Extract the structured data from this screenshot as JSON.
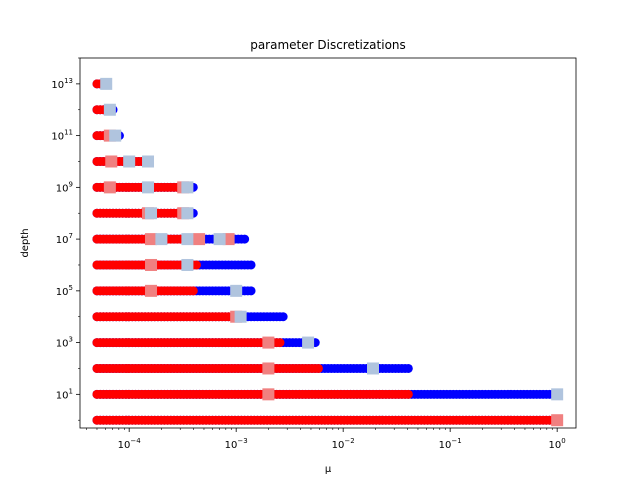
{
  "chart_data": {
    "type": "scatter",
    "title": "parameter Discretizations",
    "xlabel": "μ",
    "ylabel": "depth",
    "xscale": "log",
    "yscale": "log",
    "xlim": [
      3.47e-05,
      1.5
    ],
    "ylim": [
      0.5,
      100000000000000
    ],
    "grid": false,
    "x_ticks": [
      {
        "value": 0.0001,
        "label": "10",
        "sup": "−4"
      },
      {
        "value": 0.001,
        "label": "10",
        "sup": "−3"
      },
      {
        "value": 0.01,
        "label": "10",
        "sup": "−2"
      },
      {
        "value": 0.1,
        "label": "10",
        "sup": "−1"
      },
      {
        "value": 1,
        "label": "10",
        "sup": "0"
      }
    ],
    "y_ticks": [
      {
        "value": 10,
        "label": "10",
        "sup": "1"
      },
      {
        "value": 1000,
        "label": "10",
        "sup": "3"
      },
      {
        "value": 100000,
        "label": "10",
        "sup": "5"
      },
      {
        "value": 10000000,
        "label": "10",
        "sup": "7"
      },
      {
        "value": 1000000000,
        "label": "10",
        "sup": "9"
      },
      {
        "value": 100000000000,
        "label": "10",
        "sup": "11"
      },
      {
        "value": 10000000000000,
        "label": "10",
        "sup": "13"
      }
    ],
    "x_min": 5e-05,
    "rows": [
      {
        "depth": 1,
        "red_max": 1.0,
        "blue_max": 1.0,
        "pink": [
          1.0
        ],
        "lightblue": []
      },
      {
        "depth": 10,
        "red_max": 0.042,
        "blue_max": 1.0,
        "pink": [
          0.002
        ],
        "lightblue": [
          1.0
        ]
      },
      {
        "depth": 100,
        "red_max": 0.006,
        "blue_max": 0.042,
        "pink": [
          0.002
        ],
        "lightblue": [
          0.019
        ]
      },
      {
        "depth": 1000,
        "red_max": 0.0027,
        "blue_max": 0.0057,
        "pink": [
          0.002
        ],
        "lightblue": [
          0.0047
        ]
      },
      {
        "depth": 10000,
        "red_max": 0.0011,
        "blue_max": 0.0028,
        "pink": [
          0.001
        ],
        "lightblue": [
          0.0011
        ]
      },
      {
        "depth": 100000,
        "red_max": 0.0004,
        "blue_max": 0.0014,
        "pink": [
          0.00016
        ],
        "lightblue": [
          0.001
        ]
      },
      {
        "depth": 1000000,
        "red_max": 0.00045,
        "blue_max": 0.0014,
        "pink": [
          0.00016
        ],
        "lightblue": [
          0.00035
        ]
      },
      {
        "depth": 10000000,
        "red_max": 0.00045,
        "blue_max": 0.00125,
        "pink": [
          0.00016,
          0.00045,
          0.00085
        ],
        "lightblue": [
          0.0002,
          0.00035,
          0.0007
        ]
      },
      {
        "depth": 100000000,
        "red_max": 0.00032,
        "blue_max": 0.00041,
        "pink": [
          0.00015,
          0.00032
        ],
        "lightblue": [
          0.00016,
          0.00035
        ]
      },
      {
        "depth": 1000000000,
        "red_max": 0.00032,
        "blue_max": 0.00041,
        "pink": [
          6.6e-05,
          0.00032
        ],
        "lightblue": [
          0.00015,
          0.00035
        ]
      },
      {
        "depth": 10000000000,
        "red_max": 0.00014,
        "blue_max": 0.00016,
        "pink": [
          6.8e-05
        ],
        "lightblue": [
          0.0001,
          0.00015
        ]
      },
      {
        "depth": 100000000000,
        "red_max": 7e-05,
        "blue_max": 8.2e-05,
        "pink": [
          6.6e-05
        ],
        "lightblue": [
          7.4e-05
        ]
      },
      {
        "depth": 1000000000000,
        "red_max": 6.6e-05,
        "blue_max": 7.2e-05,
        "pink": [],
        "lightblue": [
          6.6e-05
        ]
      },
      {
        "depth": 10000000000000,
        "red_max": 5.8e-05,
        "blue_max": 6e-05,
        "pink": [],
        "lightblue": [
          6.1e-05
        ]
      }
    ],
    "colors": {
      "red": "#ff0000",
      "blue": "#0000ff",
      "pink": "#f08080",
      "lightblue": "#b0c4de"
    }
  }
}
